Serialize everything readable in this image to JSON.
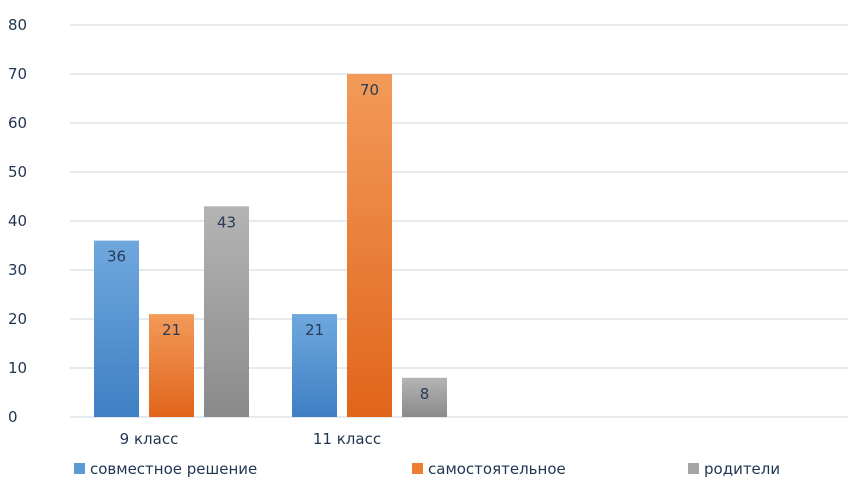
{
  "chart_data": {
    "type": "bar",
    "categories": [
      "9 класс",
      "11 класс",
      "",
      ""
    ],
    "series": [
      {
        "name": "совместное решение",
        "values": [
          36,
          21,
          null,
          null
        ],
        "color": "#5b9bd5"
      },
      {
        "name": "самостоятельное",
        "values": [
          21,
          70,
          null,
          null
        ],
        "color": "#ed7d31"
      },
      {
        "name": "родители",
        "values": [
          43,
          8,
          null,
          null
        ],
        "color": "#a5a5a5"
      }
    ],
    "ylim": [
      0,
      80
    ],
    "yticks": [
      0,
      10,
      20,
      30,
      40,
      50,
      60,
      70,
      80
    ],
    "grid": true,
    "data_labels": true,
    "legend_position": "bottom"
  }
}
